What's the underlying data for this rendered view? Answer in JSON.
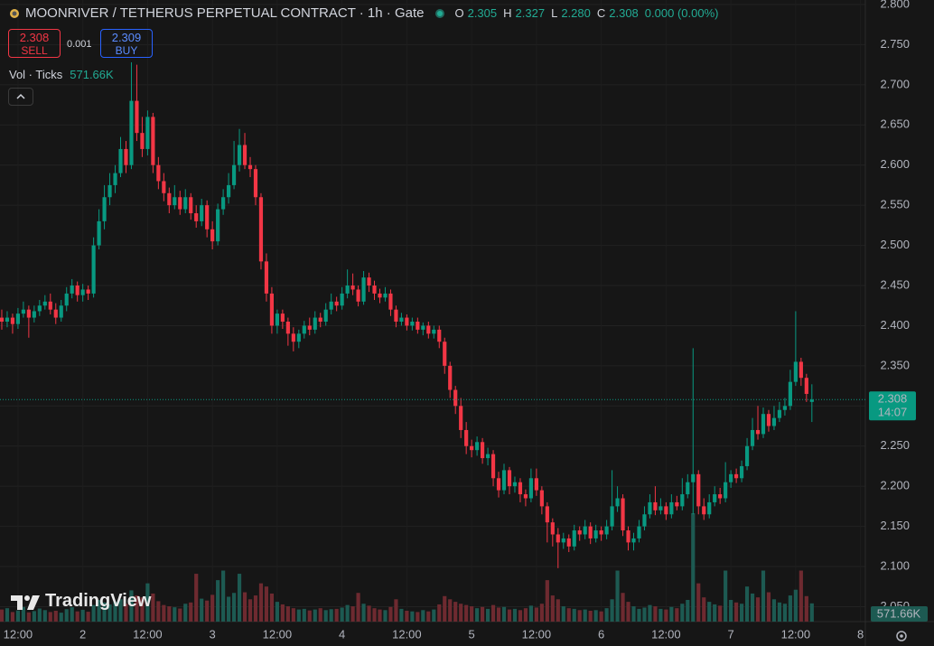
{
  "chart_data": {
    "type": "candlestick",
    "title": "MOONRIVER / TETHERUS PERPETUAL CONTRACT · 1h · Gate",
    "header": {
      "o_label": "O",
      "open": "2.305",
      "h_label": "H",
      "high": "2.327",
      "l_label": "L",
      "low": "2.280",
      "c_label": "C",
      "close": "2.308",
      "change": "0.000 (0.00%)"
    },
    "trade": {
      "sell_price": "2.308",
      "sell": "SELL",
      "spread": "0.001",
      "buy_price": "2.309",
      "buy": "BUY"
    },
    "volume_title": "Vol · Ticks",
    "price_tag": {
      "price": "2.308",
      "countdown": "14:07"
    },
    "brand": "TradingView",
    "up_color": "#089981",
    "down_color": "#f23645",
    "open": [
      2.41,
      2.405,
      2.41,
      2.402,
      2.415,
      2.42,
      2.41,
      2.418,
      2.425,
      2.43,
      2.42,
      2.41,
      2.425,
      2.44,
      2.45,
      2.438,
      2.445,
      2.44,
      2.5,
      2.53,
      2.56,
      2.575,
      2.59,
      2.62,
      2.6,
      2.68,
      2.64,
      2.62,
      2.66,
      2.6,
      2.58,
      2.565,
      2.55,
      2.56,
      2.545,
      2.56,
      2.54,
      2.53,
      2.55,
      2.52,
      2.505,
      2.545,
      2.56,
      2.575,
      2.6,
      2.625,
      2.6,
      2.595,
      2.56,
      2.48,
      2.44,
      2.4,
      2.415,
      2.405,
      2.39,
      2.38,
      2.39,
      2.4,
      2.395,
      2.41,
      2.405,
      2.42,
      2.43,
      2.425,
      2.44,
      2.45,
      2.445,
      2.43,
      2.46,
      2.45,
      2.44,
      2.435,
      2.44,
      2.42,
      2.405,
      2.41,
      2.4,
      2.405,
      2.395,
      2.4,
      2.39,
      2.395,
      2.38,
      2.35,
      2.32,
      2.3,
      2.27,
      2.25,
      2.245,
      2.255,
      2.235,
      2.24,
      2.21,
      2.195,
      2.22,
      2.2,
      2.205,
      2.19,
      2.185,
      2.21,
      2.195,
      2.175,
      2.155,
      2.14,
      2.13,
      2.135,
      2.125,
      2.145,
      2.14,
      2.15,
      2.135,
      2.145,
      2.14,
      2.15,
      2.175,
      2.185,
      2.145,
      2.13,
      2.135,
      2.15,
      2.165,
      2.18,
      2.17,
      2.175,
      2.165,
      2.18,
      2.175,
      2.19,
      2.205,
      2.215,
      2.175,
      2.165,
      2.18,
      2.19,
      2.185,
      2.205,
      2.215,
      2.21,
      2.225,
      2.25,
      2.27,
      2.265,
      2.29,
      2.275,
      2.285,
      2.295,
      2.3,
      2.33,
      2.355,
      2.335,
      2.305
    ],
    "high": [
      2.42,
      2.418,
      2.415,
      2.422,
      2.43,
      2.425,
      2.425,
      2.432,
      2.438,
      2.44,
      2.428,
      2.432,
      2.448,
      2.458,
      2.455,
      2.452,
      2.45,
      2.51,
      2.545,
      2.575,
      2.59,
      2.6,
      2.635,
      2.63,
      2.728,
      2.725,
      2.66,
      2.668,
      2.665,
      2.61,
      2.59,
      2.572,
      2.575,
      2.568,
      2.57,
      2.565,
      2.55,
      2.558,
      2.556,
      2.53,
      2.552,
      2.57,
      2.59,
      2.63,
      2.645,
      2.64,
      2.61,
      2.6,
      2.565,
      2.49,
      2.448,
      2.42,
      2.42,
      2.41,
      2.398,
      2.395,
      2.406,
      2.41,
      2.418,
      2.416,
      2.428,
      2.44,
      2.436,
      2.448,
      2.47,
      2.465,
      2.45,
      2.468,
      2.466,
      2.456,
      2.446,
      2.448,
      2.445,
      2.425,
      2.416,
      2.414,
      2.41,
      2.41,
      2.404,
      2.405,
      2.4,
      2.4,
      2.385,
      2.355,
      2.325,
      2.31,
      2.28,
      2.258,
      2.262,
      2.26,
      2.248,
      2.245,
      2.218,
      2.228,
      2.224,
      2.212,
      2.21,
      2.196,
      2.222,
      2.222,
      2.2,
      2.18,
      2.16,
      2.148,
      2.142,
      2.14,
      2.152,
      2.15,
      2.158,
      2.155,
      2.152,
      2.15,
      2.158,
      2.22,
      2.2,
      2.19,
      2.15,
      2.142,
      2.158,
      2.175,
      2.19,
      2.2,
      2.185,
      2.18,
      2.19,
      2.188,
      2.21,
      2.215,
      2.372,
      2.22,
      2.185,
      2.19,
      2.2,
      2.198,
      2.23,
      2.22,
      2.222,
      2.232,
      2.26,
      2.285,
      2.3,
      2.298,
      2.295,
      2.3,
      2.305,
      2.31,
      2.345,
      2.418,
      2.36,
      2.34,
      2.327
    ],
    "low": [
      2.395,
      2.398,
      2.39,
      2.396,
      2.41,
      2.385,
      2.404,
      2.412,
      2.42,
      2.414,
      2.402,
      2.405,
      2.418,
      2.434,
      2.43,
      2.43,
      2.432,
      2.435,
      2.495,
      2.52,
      2.55,
      2.565,
      2.585,
      2.59,
      2.595,
      2.63,
      2.61,
      2.612,
      2.59,
      2.57,
      2.555,
      2.54,
      2.545,
      2.538,
      2.54,
      2.532,
      2.522,
      2.524,
      2.51,
      2.495,
      2.5,
      2.538,
      2.552,
      2.57,
      2.592,
      2.595,
      2.585,
      2.55,
      2.47,
      2.43,
      2.39,
      2.39,
      2.396,
      2.375,
      2.368,
      2.372,
      2.384,
      2.388,
      2.39,
      2.398,
      2.4,
      2.414,
      2.418,
      2.42,
      2.434,
      2.438,
      2.424,
      2.426,
      2.442,
      2.432,
      2.428,
      2.43,
      2.412,
      2.398,
      2.4,
      2.394,
      2.394,
      2.39,
      2.388,
      2.384,
      2.384,
      2.372,
      2.34,
      2.31,
      2.29,
      2.26,
      2.24,
      2.236,
      2.238,
      2.228,
      2.226,
      2.2,
      2.186,
      2.19,
      2.19,
      2.192,
      2.18,
      2.175,
      2.18,
      2.188,
      2.165,
      2.13,
      2.125,
      2.098,
      2.122,
      2.118,
      2.12,
      2.132,
      2.134,
      2.128,
      2.13,
      2.132,
      2.134,
      2.145,
      2.168,
      2.138,
      2.12,
      2.12,
      2.13,
      2.145,
      2.16,
      2.164,
      2.165,
      2.158,
      2.16,
      2.17,
      2.17,
      2.185,
      2.165,
      2.165,
      2.158,
      2.16,
      2.175,
      2.178,
      2.18,
      2.198,
      2.204,
      2.205,
      2.22,
      2.245,
      2.258,
      2.26,
      2.268,
      2.27,
      2.28,
      2.288,
      2.295,
      2.325,
      2.325,
      2.305,
      2.28
    ],
    "close": [
      2.405,
      2.41,
      2.402,
      2.415,
      2.42,
      2.41,
      2.418,
      2.425,
      2.43,
      2.42,
      2.41,
      2.425,
      2.44,
      2.45,
      2.438,
      2.445,
      2.44,
      2.5,
      2.53,
      2.56,
      2.575,
      2.59,
      2.62,
      2.6,
      2.68,
      2.64,
      2.62,
      2.66,
      2.6,
      2.58,
      2.565,
      2.55,
      2.56,
      2.545,
      2.56,
      2.54,
      2.53,
      2.55,
      2.52,
      2.505,
      2.545,
      2.56,
      2.575,
      2.6,
      2.625,
      2.6,
      2.595,
      2.56,
      2.48,
      2.44,
      2.4,
      2.415,
      2.405,
      2.39,
      2.38,
      2.39,
      2.4,
      2.395,
      2.41,
      2.405,
      2.42,
      2.43,
      2.425,
      2.44,
      2.45,
      2.445,
      2.43,
      2.46,
      2.45,
      2.44,
      2.435,
      2.44,
      2.42,
      2.405,
      2.41,
      2.4,
      2.405,
      2.395,
      2.4,
      2.39,
      2.395,
      2.38,
      2.35,
      2.32,
      2.3,
      2.27,
      2.25,
      2.245,
      2.255,
      2.235,
      2.24,
      2.21,
      2.195,
      2.22,
      2.2,
      2.205,
      2.19,
      2.185,
      2.21,
      2.195,
      2.175,
      2.155,
      2.14,
      2.13,
      2.135,
      2.125,
      2.145,
      2.14,
      2.15,
      2.135,
      2.145,
      2.14,
      2.15,
      2.175,
      2.185,
      2.145,
      2.13,
      2.135,
      2.15,
      2.165,
      2.18,
      2.17,
      2.175,
      2.165,
      2.18,
      2.175,
      2.19,
      2.205,
      2.215,
      2.175,
      2.165,
      2.18,
      2.19,
      2.185,
      2.205,
      2.215,
      2.21,
      2.225,
      2.25,
      2.27,
      2.265,
      2.29,
      2.275,
      2.285,
      2.295,
      2.3,
      2.33,
      2.355,
      2.335,
      2.315,
      2.308
    ],
    "volume": {
      "up_color": "#1d5a52",
      "down_color": "#6e2a30",
      "last_label": "571.66K",
      "values": [
        380000,
        420000,
        300000,
        350000,
        460000,
        290000,
        330000,
        410000,
        360000,
        300000,
        340000,
        280000,
        390000,
        450000,
        320000,
        370000,
        310000,
        520000,
        680000,
        600000,
        540000,
        620000,
        700000,
        560000,
        980000,
        820000,
        760000,
        1200000,
        880000,
        640000,
        520000,
        480000,
        450000,
        410000,
        560000,
        600000,
        1500000,
        720000,
        660000,
        840000,
        1300000,
        1600000,
        780000,
        900000,
        1500000,
        920000,
        700000,
        820000,
        1200000,
        1100000,
        880000,
        620000,
        540000,
        480000,
        420000,
        380000,
        400000,
        350000,
        380000,
        420000,
        360000,
        390000,
        400000,
        440000,
        520000,
        480000,
        900000,
        560000,
        500000,
        420000,
        380000,
        360000,
        460000,
        700000,
        400000,
        340000,
        320000,
        300000,
        360000,
        320000,
        380000,
        540000,
        800000,
        700000,
        620000,
        560000,
        520000,
        480000,
        420000,
        460000,
        400000,
        520000,
        440000,
        460000,
        380000,
        400000,
        360000,
        420000,
        500000,
        440000,
        560000,
        1300000,
        820000,
        700000,
        480000,
        420000,
        400000,
        360000,
        380000,
        340000,
        360000,
        320000,
        420000,
        700000,
        1600000,
        900000,
        620000,
        480000,
        400000,
        440000,
        520000,
        480000,
        400000,
        380000,
        460000,
        420000,
        560000,
        680000,
        3400000,
        1200000,
        760000,
        620000,
        540000,
        500000,
        1600000,
        680000,
        600000,
        560000,
        1100000,
        880000,
        760000,
        1600000,
        920000,
        700000,
        600000,
        560000,
        820000,
        1000000,
        1600000,
        800000,
        571660
      ]
    },
    "xlim": [
      -0.33,
      159.9
    ],
    "xticks": [
      {
        "value": 3,
        "label": "12:00"
      },
      {
        "value": 15,
        "label": "2"
      },
      {
        "value": 27,
        "label": "12:00"
      },
      {
        "value": 39,
        "label": "3"
      },
      {
        "value": 51,
        "label": "12:00"
      },
      {
        "value": 63,
        "label": "4"
      },
      {
        "value": 75,
        "label": "12:00"
      },
      {
        "value": 87,
        "label": "5"
      },
      {
        "value": 99,
        "label": "12:00"
      },
      {
        "value": 111,
        "label": "6"
      },
      {
        "value": 123,
        "label": "12:00"
      },
      {
        "value": 135,
        "label": "7"
      },
      {
        "value": 147,
        "label": "12:00"
      },
      {
        "value": 159,
        "label": "8"
      }
    ],
    "ylim": [
      2.0314,
      2.8056
    ],
    "yticks": [
      {
        "value": 2.8,
        "label": "2.800"
      },
      {
        "value": 2.75,
        "label": "2.750"
      },
      {
        "value": 2.7,
        "label": "2.700"
      },
      {
        "value": 2.65,
        "label": "2.650"
      },
      {
        "value": 2.6,
        "label": "2.600"
      },
      {
        "value": 2.55,
        "label": "2.550"
      },
      {
        "value": 2.5,
        "label": "2.500"
      },
      {
        "value": 2.45,
        "label": "2.450"
      },
      {
        "value": 2.4,
        "label": "2.400"
      },
      {
        "value": 2.35,
        "label": "2.350"
      },
      {
        "value": 2.3,
        "label": "2.300"
      },
      {
        "value": 2.25,
        "label": "2.250"
      },
      {
        "value": 2.2,
        "label": "2.200"
      },
      {
        "value": 2.15,
        "label": "2.150"
      },
      {
        "value": 2.1,
        "label": "2.100"
      },
      {
        "value": 2.05,
        "label": "2.050"
      }
    ],
    "grid": true
  }
}
